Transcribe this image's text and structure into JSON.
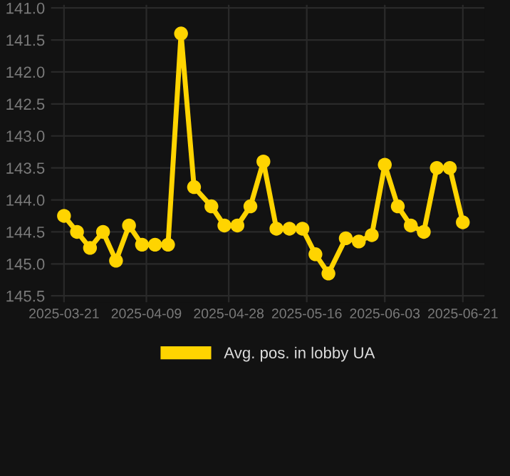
{
  "chart_data": {
    "type": "line",
    "x": [
      "2025-03-21",
      "2025-03-24",
      "2025-03-27",
      "2025-03-30",
      "2025-04-02",
      "2025-04-05",
      "2025-04-08",
      "2025-04-11",
      "2025-04-14",
      "2025-04-17",
      "2025-04-20",
      "2025-04-24",
      "2025-04-27",
      "2025-04-30",
      "2025-05-03",
      "2025-05-06",
      "2025-05-09",
      "2025-05-12",
      "2025-05-15",
      "2025-05-18",
      "2025-05-21",
      "2025-05-25",
      "2025-05-28",
      "2025-05-31",
      "2025-06-03",
      "2025-06-06",
      "2025-06-09",
      "2025-06-12",
      "2025-06-15",
      "2025-06-18",
      "2025-06-21"
    ],
    "series": [
      {
        "name": "Avg. pos. in lobby UA",
        "color": "#ffd400",
        "values": [
          144.25,
          144.5,
          144.75,
          144.5,
          144.95,
          144.4,
          144.7,
          144.7,
          144.7,
          141.4,
          143.8,
          144.1,
          144.4,
          144.4,
          144.1,
          143.4,
          144.45,
          144.45,
          144.45,
          144.85,
          145.15,
          144.6,
          144.65,
          144.55,
          143.45,
          144.1,
          144.4,
          144.5,
          143.5,
          143.5,
          144.35
        ]
      }
    ],
    "ylim": [
      145.6,
      140.95
    ],
    "yticks": [
      {
        "value": 141,
        "label": "141.0"
      },
      141.5,
      {
        "value": 142,
        "label": "142.0"
      },
      142.5,
      {
        "value": 143,
        "label": "143.0"
      },
      143.5,
      {
        "value": 144,
        "label": "144.0"
      },
      144.5,
      {
        "value": 145,
        "label": "145.0"
      },
      145.5
    ],
    "xlim": [
      "2025-03-18",
      "2025-06-26"
    ],
    "xticks": [
      "2025-03-21",
      "2025-04-09",
      "2025-04-28",
      "2025-05-16",
      "2025-06-03",
      "2025-06-21"
    ],
    "grid": true,
    "legend": "bottom",
    "marker": "circle",
    "line_style": "solid"
  }
}
